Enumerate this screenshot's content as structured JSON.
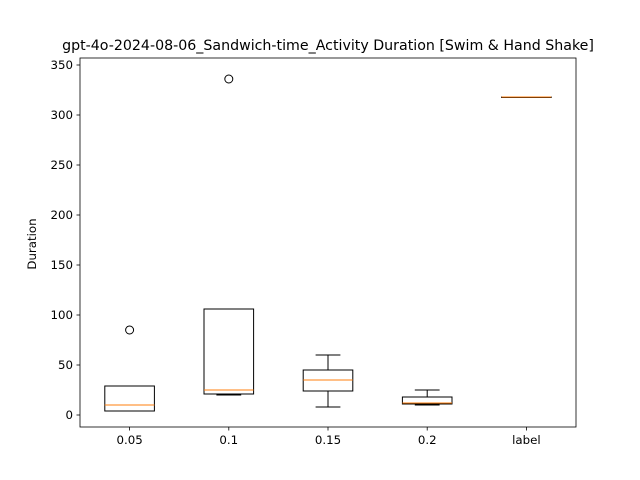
{
  "chart_data": {
    "type": "boxplot",
    "title": "gpt-4o-2024-08-06_Sandwich-time_Activity Duration [Swim & Hand Shake]",
    "xlabel": "",
    "ylabel": "Duration",
    "ylim": [
      -12,
      357
    ],
    "yticks": [
      0,
      50,
      100,
      150,
      200,
      250,
      300,
      350
    ],
    "grid": false,
    "categories": [
      "0.05",
      "0.1",
      "0.15",
      "0.2",
      "label"
    ],
    "boxes": [
      {
        "category": "0.05",
        "whisker_low": 4,
        "q1": 4,
        "median": 10,
        "q3": 29,
        "whisker_high": 29,
        "outliers": [
          85
        ]
      },
      {
        "category": "0.1",
        "whisker_low": 20,
        "q1": 21,
        "median": 25,
        "q3": 106,
        "whisker_high": 106,
        "outliers": [
          336
        ]
      },
      {
        "category": "0.15",
        "whisker_low": 8,
        "q1": 24,
        "median": 35,
        "q3": 45,
        "whisker_high": 60,
        "outliers": []
      },
      {
        "category": "0.2",
        "whisker_low": 10,
        "q1": 11,
        "median": 12,
        "q3": 18,
        "whisker_high": 25,
        "outliers": []
      },
      {
        "category": "label",
        "whisker_low": 318,
        "q1": 318,
        "median": 318,
        "q3": 318,
        "whisker_high": 318,
        "outliers": []
      }
    ],
    "colors": {
      "box": "#000000",
      "median": "#ff7f0e",
      "outlier": "#000000"
    }
  }
}
